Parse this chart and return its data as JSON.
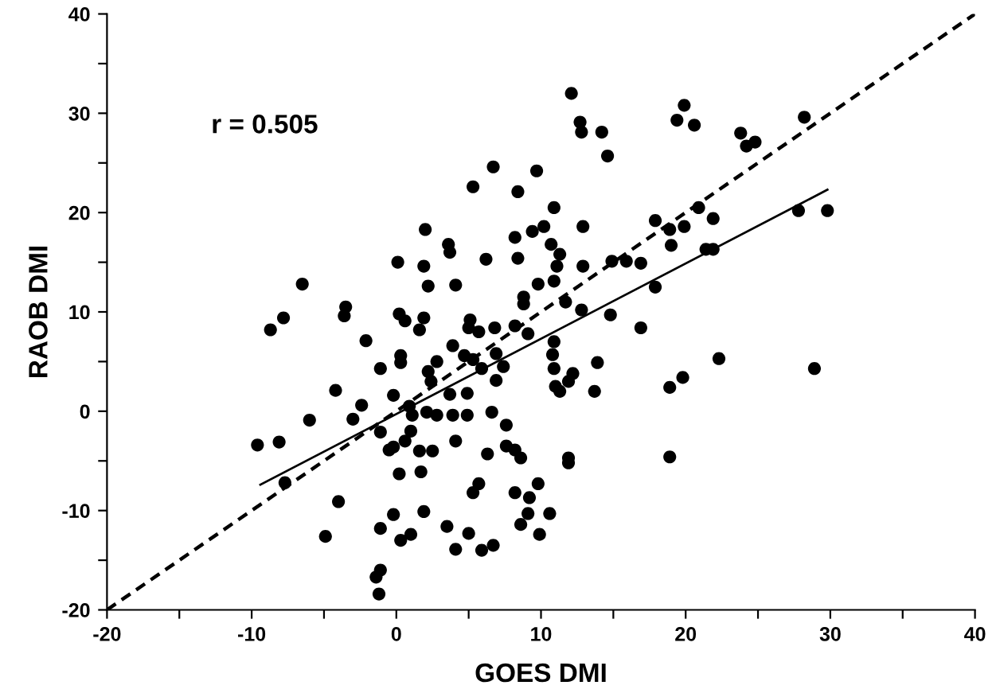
{
  "chart_data": {
    "type": "scatter",
    "xlabel": "GOES DMI",
    "ylabel": "RAOB DMI",
    "annotations": [
      "r = 0.505"
    ],
    "xlim": [
      -20,
      40
    ],
    "ylim": [
      -20,
      40
    ],
    "xticks": [
      -20,
      {
        "value": -15,
        "label": null
      },
      -10,
      {
        "value": -5,
        "label": null
      },
      0,
      {
        "value": 5,
        "label": null
      },
      10,
      {
        "value": 15,
        "label": null
      },
      20,
      {
        "value": 25,
        "label": null
      },
      30,
      {
        "value": 35,
        "label": null
      },
      40
    ],
    "yticks": [
      -20,
      {
        "value": -15,
        "label": null
      },
      -10,
      {
        "value": -5,
        "label": null
      },
      0,
      {
        "value": 5,
        "label": null
      },
      10,
      {
        "value": 15,
        "label": null
      },
      20,
      {
        "value": 25,
        "label": null
      },
      30,
      {
        "value": 35,
        "label": null
      },
      40
    ],
    "grid": false,
    "legend": false,
    "series": [
      {
        "color": "#000000",
        "marker": "circle",
        "x": [
          12.1,
          12.7,
          12.8,
          14.2,
          14.6,
          19.9,
          19.4,
          20.6,
          23.8,
          24.2,
          24.8,
          28.2,
          6.7,
          9.7,
          5.3,
          8.4,
          10.9,
          2.0,
          3.6,
          3.7,
          8.2,
          9.4,
          10.2,
          12.9,
          10.7,
          11.3,
          8.4,
          6.2,
          0.1,
          1.9,
          11.1,
          12.9,
          14.9,
          15.9,
          16.9,
          17.9,
          18.9,
          19.9,
          20.9,
          21.9,
          19.0,
          21.4,
          21.9,
          27.8,
          29.8,
          17.9,
          16.9,
          14.8,
          12.8,
          11.7,
          9.8,
          10.9,
          8.8,
          8.8,
          -6.5,
          -8.7,
          -7.8,
          -3.5,
          -3.6,
          -2.1,
          2.2,
          4.1,
          0.2,
          0.6,
          1.9,
          1.6,
          5.1,
          5.0,
          5.7,
          6.8,
          8.2,
          9.1,
          3.9,
          4.7,
          5.3,
          6.9,
          5.9,
          7.4,
          6.9,
          2.8,
          2.2,
          2.4,
          0.3,
          0.3,
          -1.1,
          -4.2,
          -2.4,
          -3.0,
          -6.0,
          -9.6,
          -8.1,
          -7.7,
          -0.2,
          0.9,
          1.1,
          2.1,
          2.8,
          3.7,
          3.9,
          4.9,
          4.9,
          6.6,
          7.6,
          -1.1,
          1.0,
          0.6,
          -0.5,
          -0.2,
          1.6,
          2.5,
          4.1,
          7.6,
          8.2,
          8.6,
          0.2,
          1.7,
          5.7,
          5.3,
          6.3,
          8.2,
          9.2,
          9.8,
          9.1,
          10.6,
          1.9,
          -0.2,
          -4.0,
          -4.9,
          -1.1,
          1.0,
          0.3,
          3.5,
          5.0,
          8.6,
          9.9,
          4.1,
          5.9,
          6.7,
          -1.1,
          -1.4,
          -1.2,
          10.9,
          10.8,
          10.9,
          11.0,
          11.3,
          11.9,
          12.2,
          13.9,
          13.7,
          11.9,
          11.9,
          18.9,
          19.8,
          22.3,
          28.9,
          18.9
        ],
        "values": [
          32.0,
          29.1,
          28.1,
          28.1,
          25.7,
          30.8,
          29.3,
          28.8,
          28.0,
          26.7,
          27.1,
          29.6,
          24.6,
          24.2,
          22.6,
          22.1,
          20.5,
          18.3,
          16.8,
          16.0,
          17.5,
          18.1,
          18.6,
          18.6,
          16.8,
          15.8,
          15.4,
          15.3,
          15.0,
          14.6,
          14.6,
          14.6,
          15.1,
          15.1,
          14.9,
          19.2,
          18.3,
          18.6,
          20.5,
          19.4,
          16.7,
          16.3,
          16.3,
          20.2,
          20.2,
          12.5,
          8.4,
          9.7,
          10.2,
          11.0,
          12.8,
          13.1,
          11.5,
          10.8,
          12.8,
          8.2,
          9.4,
          10.5,
          9.6,
          7.1,
          12.6,
          12.7,
          9.8,
          9.1,
          9.4,
          8.2,
          9.2,
          8.4,
          8.0,
          8.4,
          8.6,
          7.8,
          6.6,
          5.6,
          5.2,
          5.8,
          4.3,
          4.5,
          3.1,
          5.0,
          4.0,
          3.0,
          5.6,
          4.9,
          4.3,
          2.1,
          0.6,
          -0.8,
          -0.9,
          -3.4,
          -3.1,
          -7.2,
          1.6,
          0.5,
          -0.4,
          -0.1,
          -0.4,
          1.7,
          -0.4,
          1.8,
          -0.4,
          -0.1,
          -1.4,
          -2.1,
          -2.0,
          -3.0,
          -3.9,
          -3.6,
          -4.0,
          -4.0,
          -3.0,
          -3.5,
          -3.9,
          -4.7,
          -6.3,
          -6.1,
          -7.3,
          -8.2,
          -4.3,
          -8.2,
          -8.7,
          -7.3,
          -10.3,
          -10.3,
          -10.1,
          -10.4,
          -9.1,
          -12.6,
          -11.8,
          -12.4,
          -13.0,
          -11.6,
          -12.3,
          -11.4,
          -12.4,
          -13.9,
          -14.0,
          -13.5,
          -16.0,
          -16.7,
          -18.4,
          7.0,
          5.7,
          4.3,
          2.5,
          2.0,
          3.0,
          3.8,
          4.9,
          2.0,
          -4.7,
          -5.2,
          2.4,
          3.4,
          5.3,
          4.3,
          -4.6
        ]
      },
      {
        "type": "line",
        "color": "#000000",
        "marker": "none",
        "line_style": "solid",
        "x": [
          -9.4,
          29.8
        ],
        "values": [
          -7.4,
          22.3
        ]
      },
      {
        "type": "line",
        "color": "#000000",
        "marker": "none",
        "line_style": "dashed",
        "x": [
          -20,
          40
        ],
        "values": [
          -20,
          40
        ]
      }
    ]
  }
}
